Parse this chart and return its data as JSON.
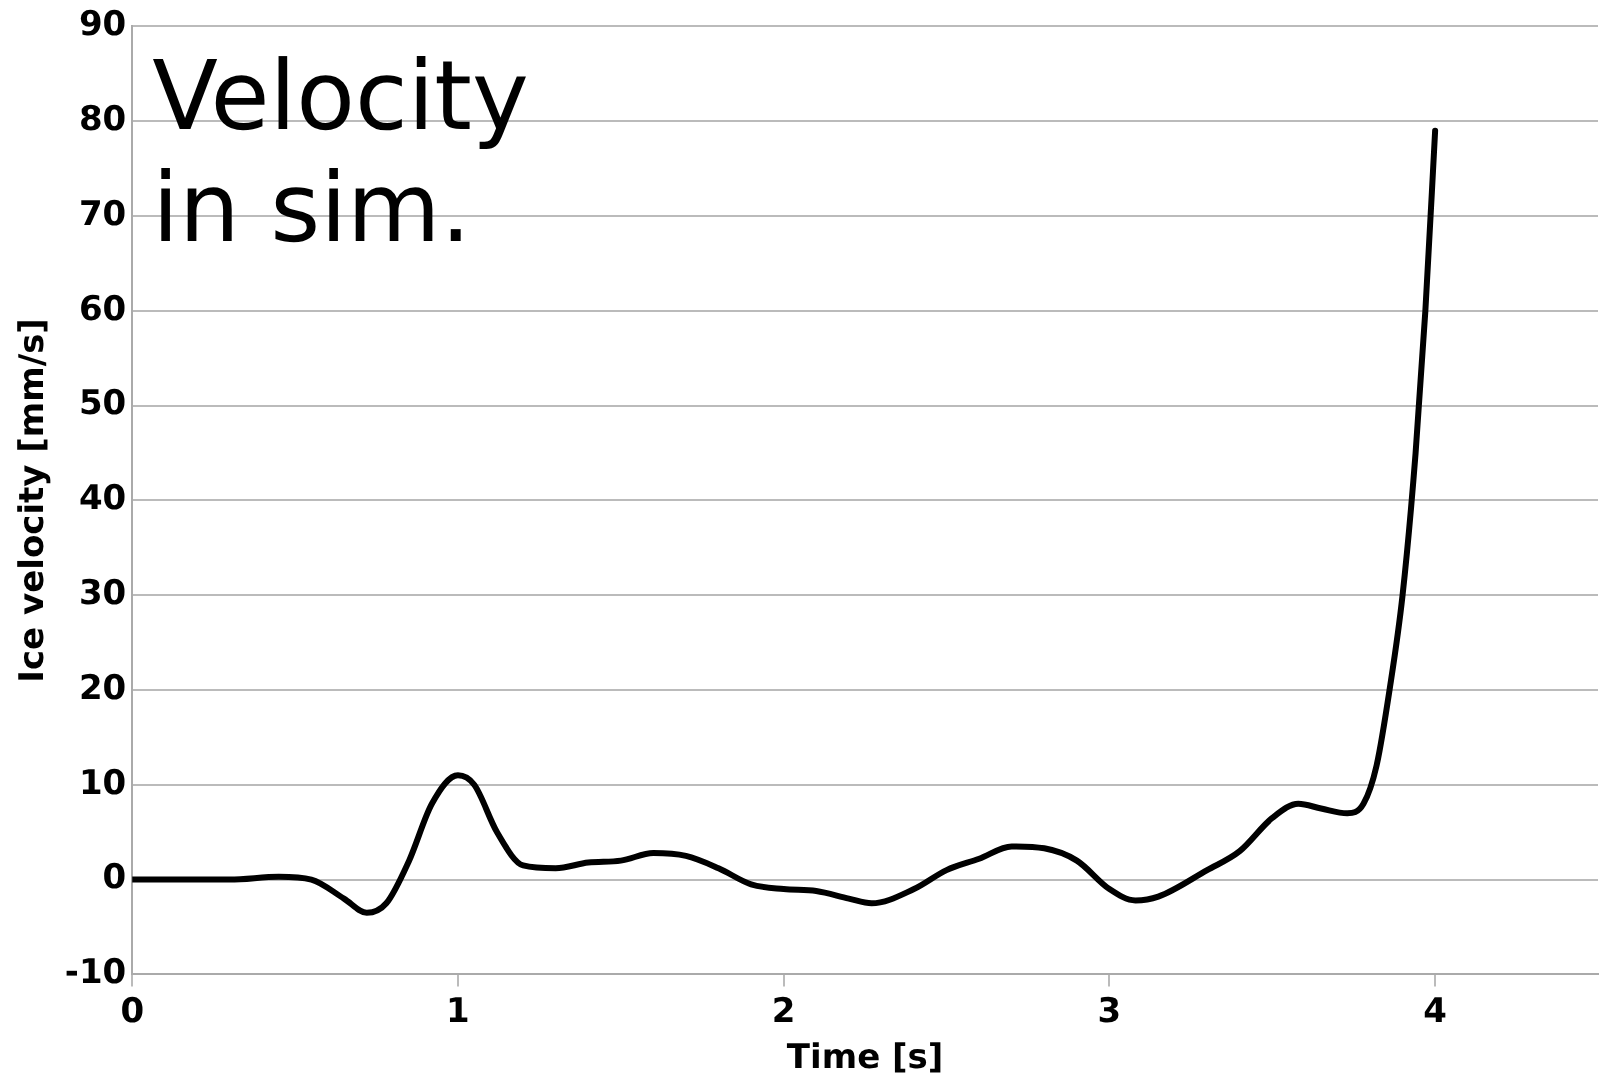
{
  "chart_data": {
    "type": "line",
    "xlabel": "Time [s]",
    "ylabel": "Ice velocity [mm/s]",
    "annotations": [
      "Velocity in sim."
    ],
    "x": [
      0,
      0.3,
      0.45,
      0.55,
      0.65,
      0.72,
      0.78,
      0.85,
      0.92,
      1.0,
      1.05,
      1.12,
      1.2,
      1.3,
      1.4,
      1.5,
      1.6,
      1.7,
      1.8,
      1.9,
      2.0,
      2.1,
      2.2,
      2.27,
      2.4,
      2.5,
      2.6,
      2.7,
      2.8,
      2.9,
      3.0,
      3.08,
      3.15,
      3.3,
      3.4,
      3.5,
      3.58,
      3.65,
      3.73,
      3.78,
      3.82,
      3.86,
      3.9,
      3.94,
      3.97,
      4.0
    ],
    "series": [
      {
        "color": "#000000",
        "values": [
          0,
          0,
          0.3,
          0,
          -2,
          -3.5,
          -2.5,
          2,
          8,
          11,
          10,
          5,
          1.5,
          1.2,
          1.8,
          2,
          2.8,
          2.5,
          1.2,
          -0.5,
          -1,
          -1.2,
          -2,
          -2.5,
          -1,
          1,
          2.2,
          3.5,
          3.3,
          2,
          -1,
          -2.2,
          -1.8,
          1,
          3,
          6.5,
          8,
          7.5,
          7,
          8,
          12,
          20,
          30,
          45,
          60,
          79
        ]
      }
    ],
    "xlim": [
      0,
      4.5
    ],
    "xticks": [
      0,
      1,
      2,
      3,
      4
    ],
    "ylim": [
      -10,
      90
    ],
    "yticks": [
      -10,
      0,
      10,
      20,
      30,
      40,
      50,
      60,
      70,
      80,
      90
    ],
    "grid": "y",
    "legend": false,
    "marker": "none",
    "line_style": "solid"
  }
}
